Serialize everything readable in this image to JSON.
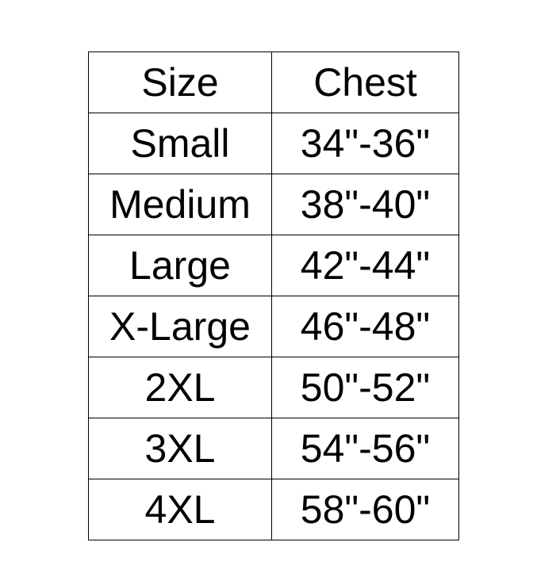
{
  "table": {
    "headers": [
      "Size",
      "Chest"
    ],
    "rows": [
      [
        "Small",
        "34\"-36\""
      ],
      [
        "Medium",
        "38\"-40\""
      ],
      [
        "Large",
        "42\"-44\""
      ],
      [
        "X-Large",
        "46\"-48\""
      ],
      [
        "2XL",
        "50\"-52\""
      ],
      [
        "3XL",
        "54\"-56\""
      ],
      [
        "4XL",
        "58\"-60\""
      ]
    ]
  }
}
